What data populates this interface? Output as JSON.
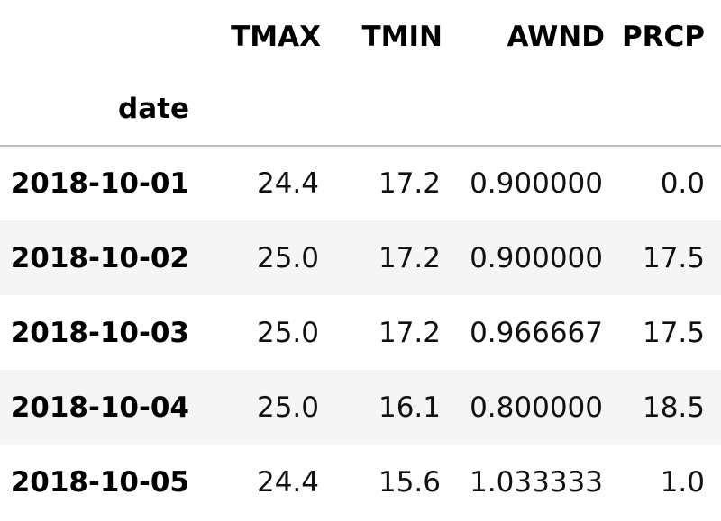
{
  "table": {
    "columns": [
      "TMAX",
      "TMIN",
      "AWND",
      "PRCP"
    ],
    "index_name": "date",
    "rows": [
      {
        "date": "2018-10-01",
        "cells": [
          "24.4",
          "17.2",
          "0.900000",
          "0.0"
        ]
      },
      {
        "date": "2018-10-02",
        "cells": [
          "25.0",
          "17.2",
          "0.900000",
          "17.5"
        ]
      },
      {
        "date": "2018-10-03",
        "cells": [
          "25.0",
          "17.2",
          "0.966667",
          "17.5"
        ]
      },
      {
        "date": "2018-10-04",
        "cells": [
          "25.0",
          "16.1",
          "0.800000",
          "18.5"
        ]
      },
      {
        "date": "2018-10-05",
        "cells": [
          "24.4",
          "15.6",
          "1.033333",
          "1.0"
        ]
      }
    ]
  },
  "colors": {
    "stripe": "#f5f5f5",
    "header_rule": "#bdbdbd"
  }
}
